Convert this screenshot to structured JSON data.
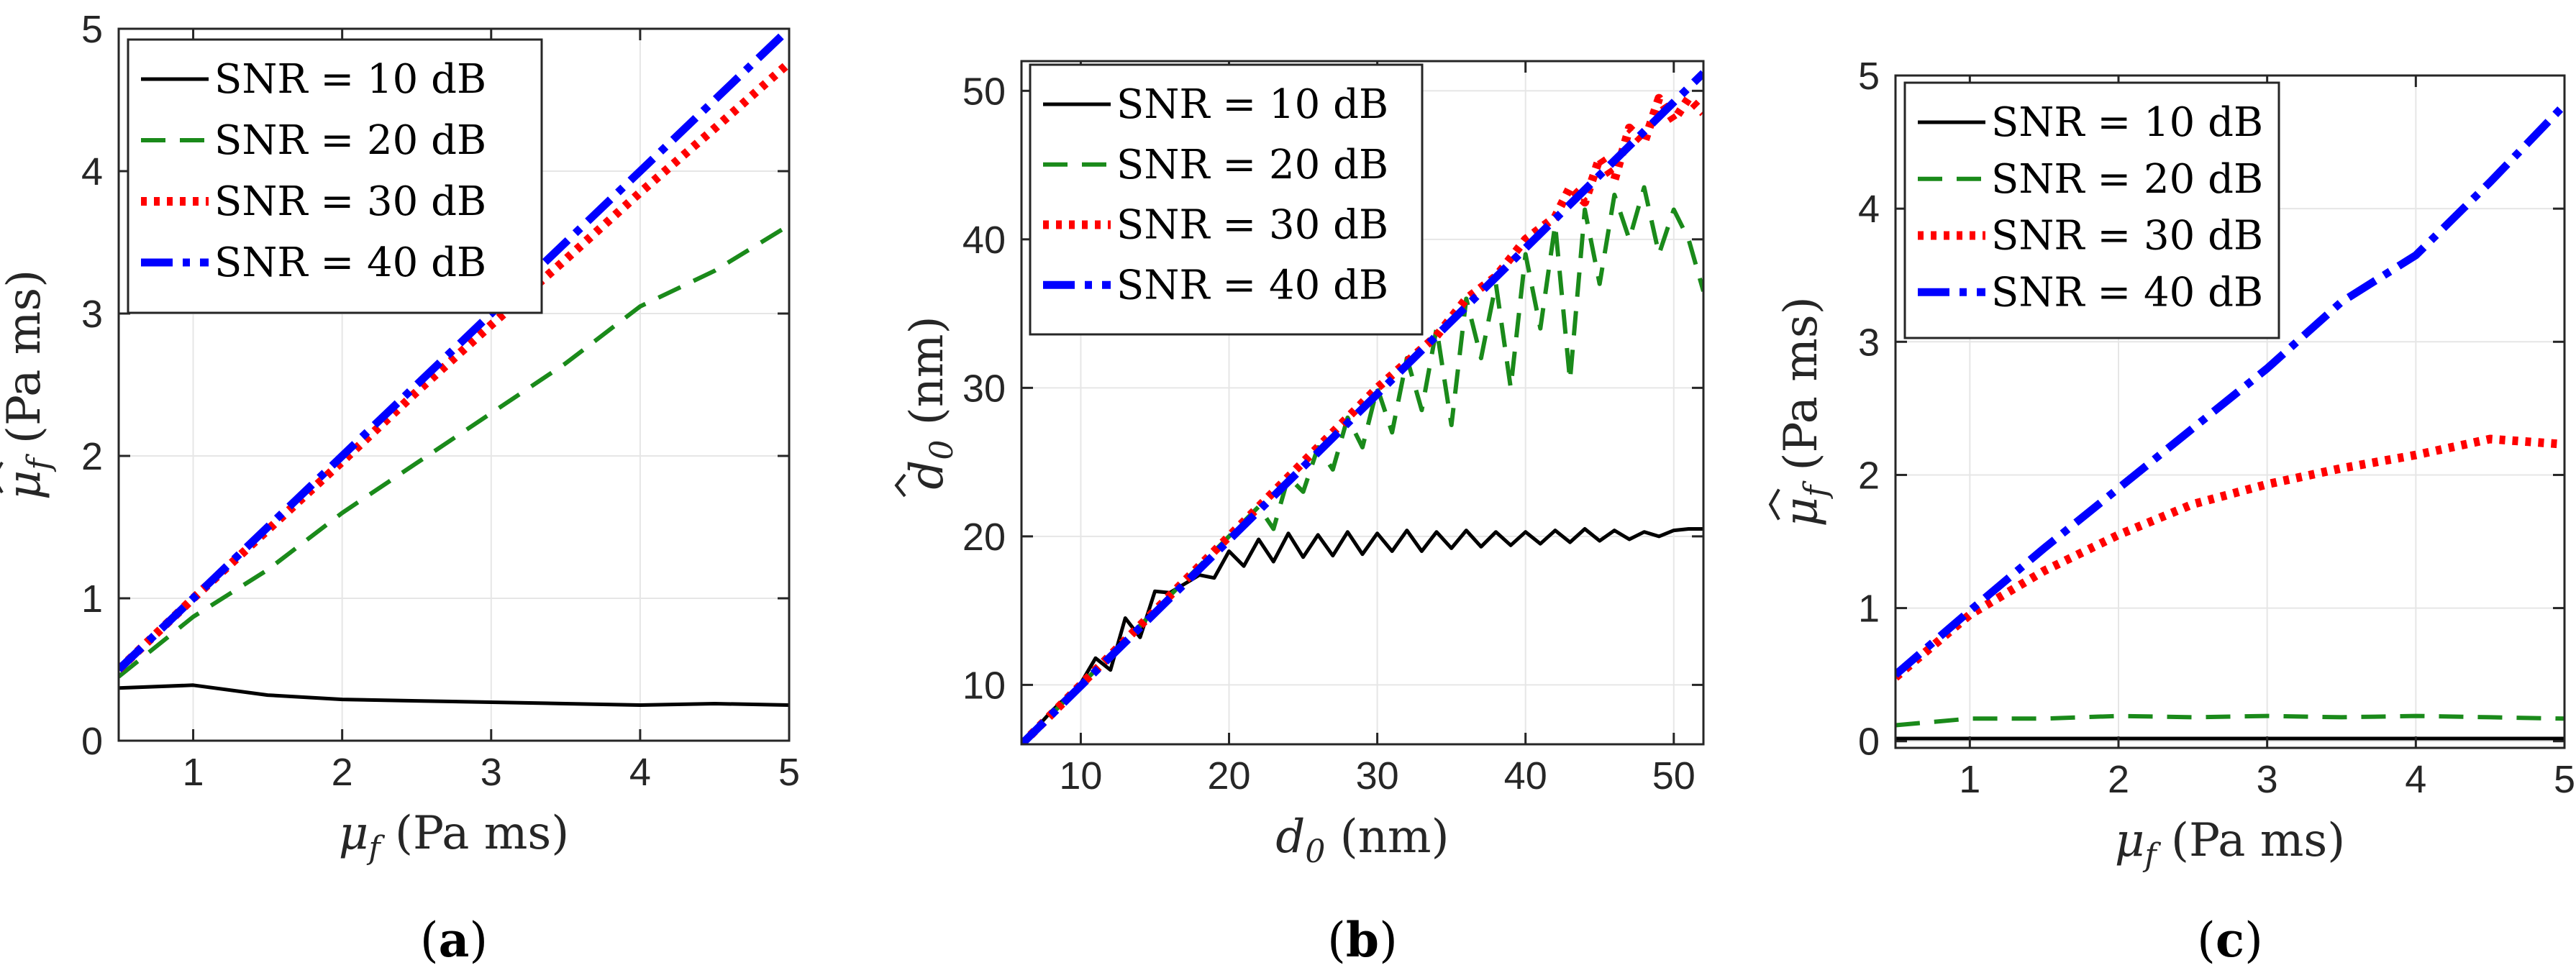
{
  "chart_data": [
    {
      "type": "line",
      "panel_label": {
        "open": "(",
        "letter": "a",
        "close": ")"
      },
      "xlabel": {
        "var": "μ",
        "sub": "f",
        "units": "(Pa ms)"
      },
      "ylabel": {
        "var": "μ",
        "sub": "f",
        "hat": "^",
        "units": "(Pa ms)"
      },
      "xlim": [
        0.5,
        5
      ],
      "ylim": [
        0,
        5
      ],
      "xticks": [
        1,
        2,
        3,
        4,
        5
      ],
      "yticks": [
        0,
        1,
        2,
        3,
        4,
        5
      ],
      "grid": true,
      "legend_position": "top-left",
      "series": [
        {
          "name": "SNR = 10 dB",
          "color": "#000000",
          "style": "solid",
          "x": [
            0.5,
            1,
            1.5,
            2,
            2.5,
            3,
            3.5,
            4,
            4.5,
            5
          ],
          "y": [
            0.37,
            0.39,
            0.32,
            0.29,
            0.28,
            0.27,
            0.26,
            0.25,
            0.26,
            0.25
          ]
        },
        {
          "name": "SNR = 20 dB",
          "color": "#1a8a1a",
          "style": "dashed",
          "x": [
            0.5,
            1,
            1.5,
            2,
            2.5,
            3,
            3.5,
            4,
            4.5,
            5
          ],
          "y": [
            0.45,
            0.87,
            1.2,
            1.6,
            1.95,
            2.3,
            2.65,
            3.05,
            3.3,
            3.62
          ]
        },
        {
          "name": "SNR = 30 dB",
          "color": "#ff0000",
          "style": "dotted",
          "x": [
            0.5,
            1,
            1.5,
            2,
            2.5,
            3,
            3.5,
            4,
            4.5,
            5
          ],
          "y": [
            0.5,
            1.0,
            1.48,
            1.96,
            2.45,
            2.92,
            3.38,
            3.85,
            4.3,
            4.76
          ]
        },
        {
          "name": "SNR = 40 dB",
          "color": "#0000ff",
          "style": "dashdot",
          "x": [
            0.5,
            1,
            1.5,
            2,
            2.5,
            3,
            3.5,
            4,
            4.5,
            5
          ],
          "y": [
            0.5,
            1.0,
            1.5,
            2.0,
            2.5,
            3.0,
            3.5,
            4.0,
            4.5,
            5.0
          ]
        }
      ]
    },
    {
      "type": "line",
      "panel_label": {
        "open": "(",
        "letter": "b",
        "close": ")"
      },
      "xlabel": {
        "var": "d",
        "sub": "0",
        "units": "(nm)"
      },
      "ylabel": {
        "var": "d",
        "sub": "0",
        "hat": "^",
        "units": "(nm)"
      },
      "xlim": [
        6,
        52
      ],
      "ylim": [
        6,
        52
      ],
      "xticks": [
        10,
        20,
        30,
        40,
        50
      ],
      "yticks": [
        10,
        20,
        30,
        40,
        50
      ],
      "grid": true,
      "legend_position": "top-left",
      "series": [
        {
          "name": "SNR = 10 dB",
          "color": "#000000",
          "style": "solid",
          "x": [
            6,
            8,
            10,
            11,
            12,
            13,
            14,
            15,
            16,
            17,
            18,
            19,
            20,
            21,
            22,
            23,
            24,
            25,
            26,
            27,
            28,
            29,
            30,
            31,
            32,
            33,
            34,
            35,
            36,
            37,
            38,
            39,
            40,
            41,
            42,
            43,
            44,
            45,
            46,
            47,
            48,
            49,
            50,
            51,
            52
          ],
          "y": [
            6,
            8.2,
            10.1,
            11.8,
            11.0,
            14.5,
            13.2,
            16.3,
            16.2,
            16.8,
            17.4,
            17.2,
            19.0,
            18.0,
            19.8,
            18.3,
            20.2,
            18.6,
            20.1,
            18.7,
            20.3,
            18.8,
            20.2,
            19.0,
            20.4,
            19.0,
            20.3,
            19.2,
            20.4,
            19.3,
            20.3,
            19.4,
            20.3,
            19.5,
            20.4,
            19.6,
            20.5,
            19.7,
            20.4,
            19.8,
            20.3,
            20.0,
            20.4,
            20.5,
            20.5
          ]
        },
        {
          "name": "SNR = 20 dB",
          "color": "#1a8a1a",
          "style": "dashed",
          "x": [
            6,
            10,
            14,
            18,
            20,
            22,
            23,
            24,
            25,
            26,
            27,
            28,
            29,
            30,
            31,
            32,
            33,
            34,
            35,
            36,
            37,
            38,
            39,
            40,
            41,
            42,
            43,
            44,
            45,
            46,
            47,
            48,
            49,
            50,
            51,
            52
          ],
          "y": [
            6,
            10,
            14,
            18,
            20,
            22,
            20.5,
            24,
            23,
            26,
            24.5,
            28,
            26,
            30,
            27,
            32,
            28.5,
            34,
            27.5,
            36,
            32,
            37,
            30,
            39,
            34,
            41,
            30.5,
            42,
            37,
            43,
            40,
            43.5,
            39,
            42,
            40,
            36.5
          ]
        },
        {
          "name": "SNR = 30 dB",
          "color": "#ff0000",
          "style": "dotted",
          "x": [
            6,
            10,
            15,
            20,
            25,
            30,
            34,
            36,
            38,
            40,
            42,
            43,
            44,
            45,
            46,
            47,
            48,
            49,
            50,
            51,
            52
          ],
          "y": [
            6,
            10,
            15,
            20,
            25,
            30,
            33.5,
            36,
            37.5,
            40,
            41.5,
            43.5,
            42.5,
            45.5,
            44.0,
            47.5,
            46.5,
            49.5,
            48.0,
            49.5,
            48.5
          ]
        },
        {
          "name": "SNR = 40 dB",
          "color": "#0000ff",
          "style": "dashdot",
          "x": [
            6,
            52
          ],
          "y": [
            6,
            51.2
          ]
        }
      ]
    },
    {
      "type": "line",
      "panel_label": {
        "open": "(",
        "letter": "c",
        "close": ")"
      },
      "xlabel": {
        "var": "μ",
        "sub": "f",
        "units": "(Pa ms)"
      },
      "ylabel": {
        "var": "μ",
        "sub": "f",
        "hat": "^",
        "units": "(Pa ms)"
      },
      "xlim": [
        0.5,
        5
      ],
      "ylim": [
        -0.05,
        5
      ],
      "xticks": [
        1,
        2,
        3,
        4,
        5
      ],
      "yticks": [
        0,
        1,
        2,
        3,
        4,
        5
      ],
      "grid": true,
      "legend_position": "top-left",
      "series": [
        {
          "name": "SNR = 10 dB",
          "color": "#000000",
          "style": "solid",
          "x": [
            0.5,
            1,
            2,
            3,
            4,
            5
          ],
          "y": [
            0.02,
            0.02,
            0.02,
            0.02,
            0.02,
            0.02
          ]
        },
        {
          "name": "SNR = 20 dB",
          "color": "#1a8a1a",
          "style": "dashed",
          "x": [
            0.5,
            1,
            1.5,
            2,
            2.5,
            3,
            3.5,
            4,
            4.5,
            5
          ],
          "y": [
            0.12,
            0.17,
            0.17,
            0.19,
            0.18,
            0.19,
            0.18,
            0.19,
            0.18,
            0.17
          ]
        },
        {
          "name": "SNR = 30 dB",
          "color": "#ff0000",
          "style": "dotted",
          "x": [
            0.5,
            1,
            1.5,
            2,
            2.5,
            3,
            3.5,
            4,
            4.5,
            4.75,
            5
          ],
          "y": [
            0.48,
            0.95,
            1.28,
            1.55,
            1.78,
            1.93,
            2.05,
            2.15,
            2.27,
            2.25,
            2.23
          ]
        },
        {
          "name": "SNR = 40 dB",
          "color": "#0000ff",
          "style": "dashdot",
          "x": [
            0.5,
            1,
            1.5,
            2,
            2.5,
            3,
            3.5,
            4,
            4.5,
            5
          ],
          "y": [
            0.5,
            0.98,
            1.45,
            1.9,
            2.35,
            2.8,
            3.3,
            3.65,
            4.2,
            4.78
          ]
        }
      ]
    }
  ]
}
